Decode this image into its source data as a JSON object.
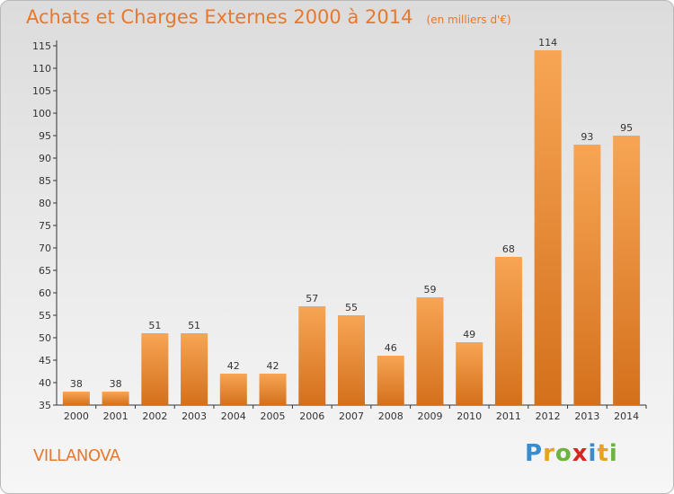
{
  "title": "Achats et Charges Externes 2000 à 2014",
  "unit": "(en milliers d'€)",
  "commune": "VILLANOVA",
  "logo": {
    "letters": [
      "P",
      "r",
      "o",
      "x",
      "i",
      "t",
      "i"
    ],
    "colors": [
      "#3a8ccd",
      "#e8a21b",
      "#6cb33f",
      "#d6281f",
      "#3a8ccd",
      "#e8a21b",
      "#6cb33f"
    ]
  },
  "colors": {
    "bar_light": "#f7a554",
    "bar_dark": "#d4701c",
    "text_orange": "#e8782d",
    "axis": "#333333"
  },
  "chart_data": {
    "type": "bar",
    "categories": [
      "2000",
      "2001",
      "2002",
      "2003",
      "2004",
      "2005",
      "2006",
      "2007",
      "2008",
      "2009",
      "2010",
      "2011",
      "2012",
      "2013",
      "2014"
    ],
    "values": [
      38,
      38,
      51,
      51,
      42,
      42,
      57,
      55,
      46,
      59,
      49,
      68,
      114,
      93,
      95
    ],
    "ylim": [
      35,
      115
    ],
    "yticks": [
      35,
      40,
      45,
      50,
      55,
      60,
      65,
      70,
      75,
      80,
      85,
      90,
      95,
      100,
      105,
      110,
      115
    ],
    "grid": false
  }
}
